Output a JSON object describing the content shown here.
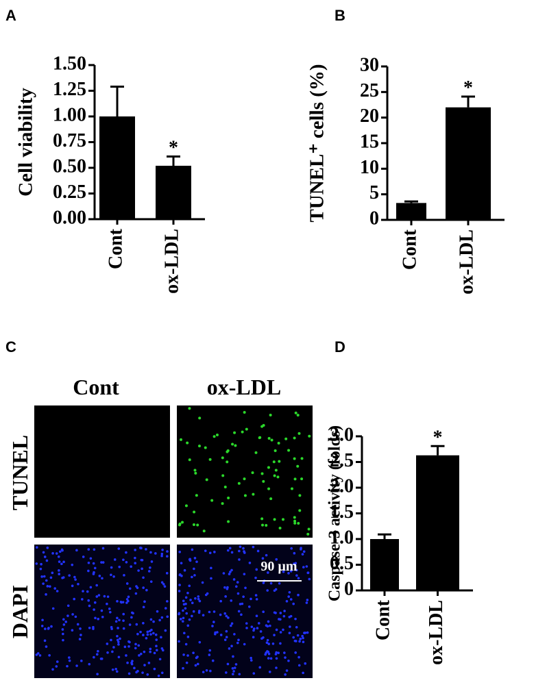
{
  "chart_data": [
    {
      "type": "bar",
      "panel_label": "A",
      "y_label": "Cell viability",
      "categories": [
        "Cont",
        "ox-LDL"
      ],
      "values": [
        1.0,
        0.52
      ],
      "errors": [
        0.29,
        0.09
      ],
      "significance": [
        null,
        "*"
      ],
      "color": "#000000",
      "ylim": [
        0,
        1.5
      ],
      "yticks": [
        {
          "value": 0,
          "label": "0.00"
        },
        {
          "value": 0.25,
          "label": "0.25"
        },
        {
          "value": 0.5,
          "label": "0.50"
        },
        {
          "value": 0.75,
          "label": "0.75"
        },
        {
          "value": 1,
          "label": "1.00"
        },
        {
          "value": 1.25,
          "label": "1.25"
        },
        {
          "value": 1.5,
          "label": "1.50"
        }
      ]
    },
    {
      "type": "bar",
      "panel_label": "B",
      "y_label": "TUNEL⁺ cells (%)",
      "categories": [
        "Cont",
        "ox-LDL"
      ],
      "values": [
        3.3,
        22
      ],
      "errors": [
        0.3,
        2.1
      ],
      "significance": [
        null,
        "*"
      ],
      "color": "#000000",
      "ylim": [
        0,
        30
      ],
      "yticks": [
        0,
        5,
        10,
        15,
        20,
        25,
        30
      ]
    },
    {
      "type": "bar",
      "panel_label": "D",
      "y_label": "Caspase-3 activity (folds)",
      "categories": [
        "Cont",
        "ox-LDL"
      ],
      "values": [
        1.0,
        2.63
      ],
      "errors": [
        0.09,
        0.18
      ],
      "significance": [
        null,
        "*"
      ],
      "color": "#000000",
      "ylim": [
        0,
        3
      ],
      "yticks": [
        0,
        0.5,
        {
          "value": 1,
          "label": "1.0"
        },
        1.5,
        {
          "value": 2,
          "label": "2.0"
        },
        2.5,
        {
          "value": 3,
          "label": "3.0"
        }
      ]
    }
  ],
  "image_panel": {
    "panel_label": "C",
    "columns": [
      "Cont",
      "ox-LDL"
    ],
    "rows": [
      "TUNEL",
      "DAPI"
    ],
    "scale_bar": "90 µm"
  }
}
